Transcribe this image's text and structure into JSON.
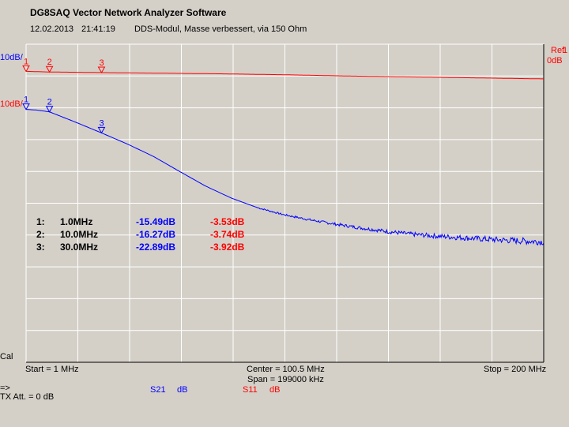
{
  "window": {
    "title": "DG8SAQ Vector Network Analyzer Software",
    "date": "12.02.2013",
    "time": "21:41:19",
    "note": "DDS-Modul, Masse verbessert, via 150 Ohm"
  },
  "ref_labels": {
    "left_red_top": "10dB/",
    "left_red_mid": "10dB/",
    "right_ref": "Ref",
    "right_ref_num": "1",
    "right_db": "0dB"
  },
  "axis_text": {
    "start": "Start = 1 MHz",
    "center": "Center = 100.5 MHz",
    "span": "Span = 199000 kHz",
    "stop": "Stop = 200 MHz",
    "cal": "Cal"
  },
  "footer": {
    "arrow": "=>",
    "tx_att": "TX Att.  = 0 dB",
    "s21": "S21",
    "s21_unit": "dB",
    "s11": "S11",
    "s11_unit": "dB"
  },
  "colors": {
    "background": "#d4d0c8",
    "s21": "#0000ff",
    "s11": "#ff0000",
    "grid": "#ffffff",
    "frame": "#000000"
  },
  "markers": [
    {
      "index": "1:",
      "freq": "1.0MHz",
      "s21": "-15.49dB",
      "s11": "-3.53dB",
      "label": "1"
    },
    {
      "index": "2:",
      "freq": "10.0MHz",
      "s21": "-16.27dB",
      "s11": "-3.74dB",
      "label": "2"
    },
    {
      "index": "3:",
      "freq": "30.0MHz",
      "s21": "-22.89dB",
      "s11": "-3.92dB",
      "label": "3"
    }
  ],
  "chart_data": {
    "type": "line",
    "x_unit": "MHz",
    "xlim": [
      1,
      200
    ],
    "x_divisions": 10,
    "y_divisions": 10,
    "grid": true,
    "series": [
      {
        "name": "S21",
        "unit": "dB",
        "color": "#0000ff",
        "scale_db_per_div": 10,
        "ref_db": -15,
        "ylim": [
          -95,
          5
        ],
        "x": [
          1,
          5,
          10,
          20,
          30,
          40,
          50,
          60,
          70,
          80,
          90,
          100,
          110,
          120,
          130,
          140,
          150,
          160,
          170,
          180,
          190,
          200
        ],
        "y": [
          -15.49,
          -15.7,
          -16.27,
          -19.5,
          -22.89,
          -26.4,
          -30.3,
          -35.0,
          -39.6,
          -43.4,
          -46.4,
          -48.6,
          -50.2,
          -51.6,
          -52.8,
          -53.9,
          -54.8,
          -55.4,
          -55.9,
          -56.4,
          -56.8,
          -57.1
        ]
      },
      {
        "name": "S11",
        "unit": "dB",
        "color": "#ff0000",
        "scale_db_per_div": 10,
        "ref_db": 0,
        "ylim": [
          -95,
          5
        ],
        "x": [
          1,
          10,
          20,
          30,
          50,
          75,
          100,
          125,
          150,
          175,
          200
        ],
        "y": [
          -3.53,
          -3.74,
          -3.82,
          -3.92,
          -4.1,
          -4.3,
          -4.6,
          -5.0,
          -5.3,
          -5.6,
          -5.9
        ]
      }
    ]
  }
}
